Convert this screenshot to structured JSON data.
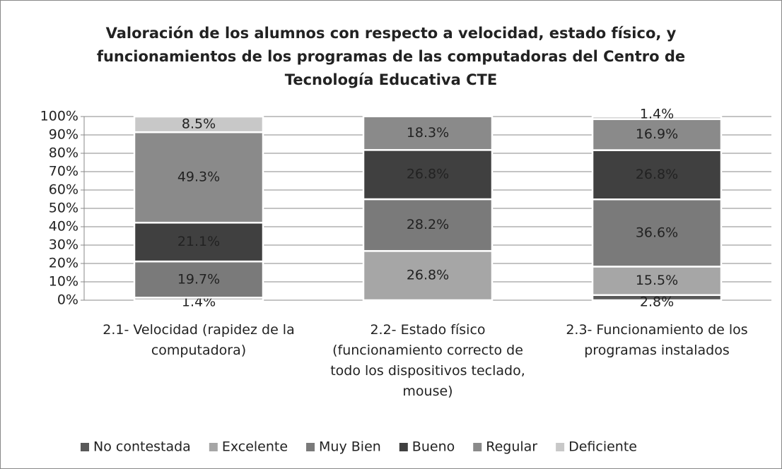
{
  "chart_data": {
    "type": "stacked_bar",
    "title": "Valoración de los alumnos con respecto a velocidad, estado físico, y funcionamientos de los programas de las computadoras del Centro de Tecnología Educativa CTE",
    "categories": [
      "2.1- Velocidad (rapidez de la computadora)",
      "2.2- Estado físico (funcionamiento correcto de todo los dispositivos teclado, mouse)",
      "2.3- Funcionamiento de los programas instalados"
    ],
    "series": [
      {
        "name": "No contestada",
        "color": "#595959",
        "values": [
          null,
          null,
          2.8
        ],
        "value_labels": [
          null,
          null,
          "2.8%"
        ]
      },
      {
        "name": "Excelente",
        "color": "#a6a6a6",
        "values": [
          1.4,
          26.8,
          15.5
        ],
        "value_labels": [
          "1.4%",
          "26.8%",
          "15.5%"
        ]
      },
      {
        "name": "Muy Bien",
        "color": "#7a7a7a",
        "values": [
          19.7,
          28.2,
          36.6
        ],
        "value_labels": [
          "19.7%",
          "28.2%",
          "36.6%"
        ]
      },
      {
        "name": "Bueno",
        "color": "#404040",
        "values": [
          21.1,
          26.8,
          26.8
        ],
        "value_labels": [
          "21.1%",
          "26.8%",
          "26.8%"
        ]
      },
      {
        "name": "Regular",
        "color": "#8a8a8a",
        "values": [
          49.3,
          18.3,
          16.9
        ],
        "value_labels": [
          "49.3%",
          "18.3%",
          "16.9%"
        ]
      },
      {
        "name": "Deficiente",
        "color": "#c8c8c8",
        "values": [
          8.5,
          null,
          1.4
        ],
        "value_labels": [
          "8.5%",
          null,
          "1.4%"
        ]
      }
    ],
    "ylim": [
      0,
      100
    ],
    "yticks": [
      {
        "value": 0,
        "label": "0%"
      },
      {
        "value": 10,
        "label": "10%"
      },
      {
        "value": 20,
        "label": "20%"
      },
      {
        "value": 30,
        "label": "30%"
      },
      {
        "value": 40,
        "label": "40%"
      },
      {
        "value": 50,
        "label": "50%"
      },
      {
        "value": 60,
        "label": "60%"
      },
      {
        "value": 70,
        "label": "70%"
      },
      {
        "value": 80,
        "label": "80%"
      },
      {
        "value": 90,
        "label": "90%"
      },
      {
        "value": 100,
        "label": "100%"
      }
    ],
    "grid": true,
    "legend": "bottom"
  }
}
